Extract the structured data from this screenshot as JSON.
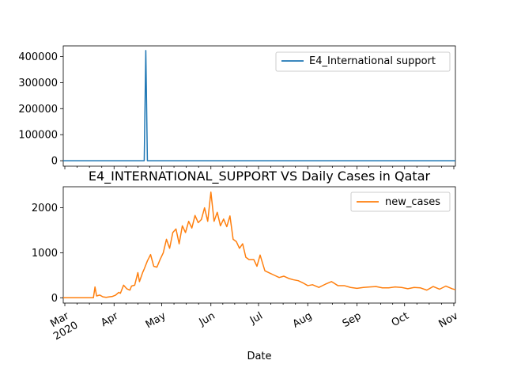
{
  "chart_data": [
    {
      "type": "line",
      "title": "",
      "xlabel": "",
      "ylabel": "",
      "ylim": [
        -21000,
        441000
      ],
      "yticks": [
        0,
        100000,
        200000,
        300000,
        400000
      ],
      "legend": "top-right",
      "color": "#1f77b4",
      "series": [
        {
          "name": "E4_International support",
          "x": [
            "2020-02-29",
            "2020-04-20",
            "2020-04-21",
            "2020-04-22",
            "2020-11-02"
          ],
          "values": [
            0,
            0,
            423000,
            0,
            0
          ]
        }
      ]
    },
    {
      "type": "line",
      "title": "E4_INTERNATIONAL_SUPPORT VS Daily Cases in Qatar",
      "xlabel": "Date",
      "ylabel": "",
      "ylim": [
        -118,
        2468
      ],
      "yticks": [
        0,
        1000,
        2000
      ],
      "legend": "top-right",
      "color": "#ff7f0e",
      "xticks": [
        {
          "date": "2020-03-01",
          "label": "Mar",
          "sublabel": "2020"
        },
        {
          "date": "2020-04-01",
          "label": "Apr"
        },
        {
          "date": "2020-05-01",
          "label": "May"
        },
        {
          "date": "2020-06-01",
          "label": "Jun"
        },
        {
          "date": "2020-07-01",
          "label": "Jul"
        },
        {
          "date": "2020-08-01",
          "label": "Aug"
        },
        {
          "date": "2020-09-01",
          "label": "Sep"
        },
        {
          "date": "2020-10-01",
          "label": "Oct"
        },
        {
          "date": "2020-11-01",
          "label": "Nov"
        }
      ],
      "series": [
        {
          "name": "new_cases",
          "x": [
            "2020-02-29",
            "2020-03-08",
            "2020-03-16",
            "2020-03-19",
            "2020-03-20",
            "2020-03-21",
            "2020-03-23",
            "2020-03-25",
            "2020-03-27",
            "2020-03-29",
            "2020-03-31",
            "2020-04-02",
            "2020-04-04",
            "2020-04-05",
            "2020-04-07",
            "2020-04-09",
            "2020-04-11",
            "2020-04-12",
            "2020-04-14",
            "2020-04-16",
            "2020-04-17",
            "2020-04-19",
            "2020-04-20",
            "2020-04-22",
            "2020-04-24",
            "2020-04-26",
            "2020-04-28",
            "2020-04-30",
            "2020-05-02",
            "2020-05-04",
            "2020-05-06",
            "2020-05-08",
            "2020-05-10",
            "2020-05-12",
            "2020-05-14",
            "2020-05-16",
            "2020-05-18",
            "2020-05-20",
            "2020-05-22",
            "2020-05-24",
            "2020-05-26",
            "2020-05-28",
            "2020-05-30",
            "2020-06-01",
            "2020-06-03",
            "2020-06-05",
            "2020-06-07",
            "2020-06-09",
            "2020-06-11",
            "2020-06-13",
            "2020-06-15",
            "2020-06-17",
            "2020-06-19",
            "2020-06-21",
            "2020-06-23",
            "2020-06-25",
            "2020-06-28",
            "2020-06-30",
            "2020-07-02",
            "2020-07-05",
            "2020-07-08",
            "2020-07-11",
            "2020-07-14",
            "2020-07-17",
            "2020-07-20",
            "2020-07-23",
            "2020-07-26",
            "2020-07-29",
            "2020-08-01",
            "2020-08-04",
            "2020-08-08",
            "2020-08-12",
            "2020-08-16",
            "2020-08-20",
            "2020-08-24",
            "2020-08-28",
            "2020-09-01",
            "2020-09-05",
            "2020-09-09",
            "2020-09-13",
            "2020-09-17",
            "2020-09-21",
            "2020-09-25",
            "2020-09-29",
            "2020-10-03",
            "2020-10-07",
            "2020-10-11",
            "2020-10-15",
            "2020-10-19",
            "2020-10-23",
            "2020-10-27",
            "2020-10-31",
            "2020-11-02"
          ],
          "values": [
            0,
            0,
            0,
            0,
            240,
            40,
            60,
            20,
            10,
            20,
            30,
            60,
            120,
            100,
            280,
            200,
            170,
            260,
            280,
            560,
            360,
            560,
            640,
            820,
            960,
            700,
            680,
            850,
            1000,
            1300,
            1100,
            1450,
            1530,
            1200,
            1600,
            1450,
            1700,
            1550,
            1830,
            1670,
            1740,
            2000,
            1700,
            2350,
            1700,
            1900,
            1600,
            1750,
            1580,
            1820,
            1300,
            1250,
            1100,
            1200,
            900,
            850,
            850,
            700,
            950,
            600,
            550,
            500,
            450,
            480,
            430,
            400,
            380,
            330,
            270,
            290,
            230,
            300,
            360,
            270,
            270,
            230,
            210,
            230,
            240,
            250,
            220,
            220,
            240,
            230,
            200,
            230,
            220,
            170,
            250,
            190,
            260,
            200,
            180
          ]
        }
      ]
    }
  ]
}
